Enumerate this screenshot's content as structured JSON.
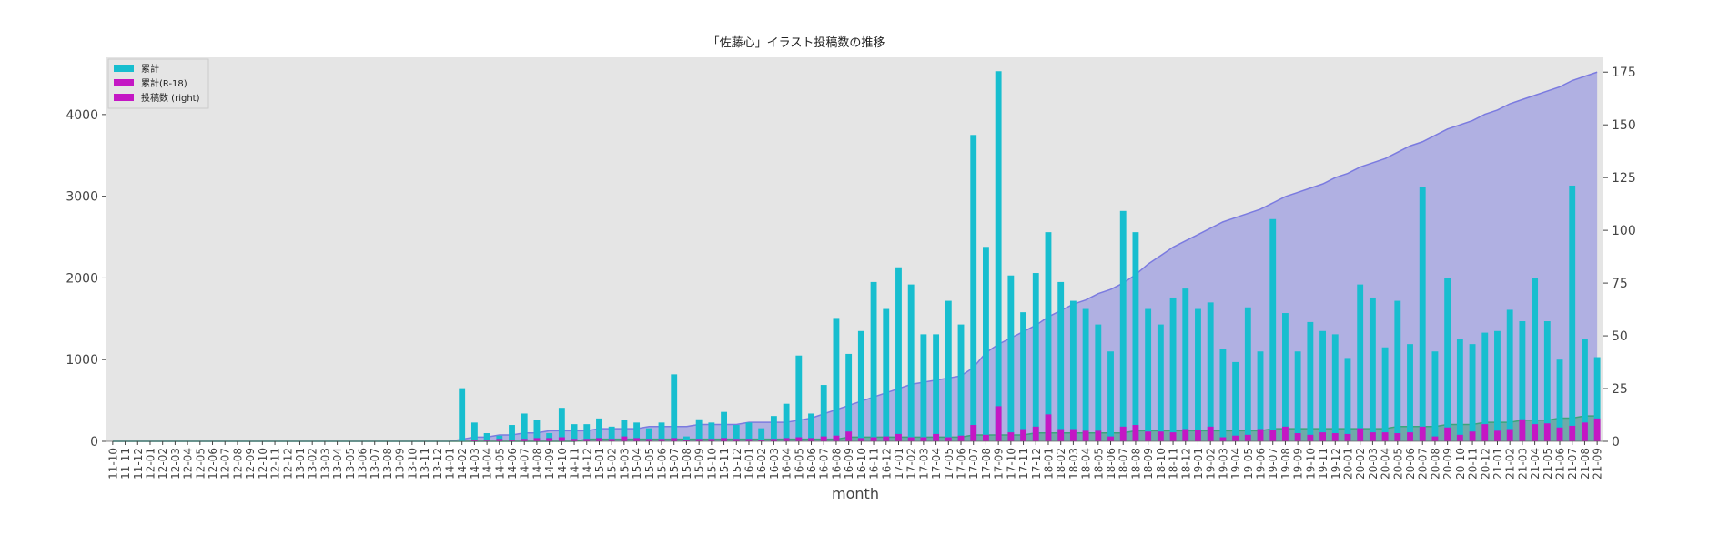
{
  "chart_data": {
    "type": "bar",
    "title": "「佐藤心」イラスト投稿数の推移",
    "xlabel": "month",
    "ylabel": "",
    "y2label": "",
    "ylim": [
      0,
      4700
    ],
    "y2lim": [
      0,
      182
    ],
    "yticks": [
      0,
      1000,
      2000,
      3000,
      4000
    ],
    "y2ticks": [
      0,
      25,
      50,
      75,
      100,
      125,
      150,
      175
    ],
    "grid": false,
    "legend_position": "top-left",
    "legend": [
      "累計",
      "累計(R-18)",
      "投稿数 (right)"
    ],
    "categories": [
      "11-10",
      "11-11",
      "11-12",
      "12-01",
      "12-02",
      "12-03",
      "12-04",
      "12-05",
      "12-06",
      "12-07",
      "12-08",
      "12-09",
      "12-10",
      "12-11",
      "12-12",
      "13-01",
      "13-02",
      "13-03",
      "13-04",
      "13-05",
      "13-06",
      "13-07",
      "13-08",
      "13-09",
      "13-10",
      "13-11",
      "13-12",
      "14-01",
      "14-02",
      "14-03",
      "14-04",
      "14-05",
      "14-06",
      "14-07",
      "14-08",
      "14-09",
      "14-10",
      "14-11",
      "14-12",
      "15-01",
      "15-02",
      "15-03",
      "15-04",
      "15-05",
      "15-06",
      "15-07",
      "15-08",
      "15-09",
      "15-10",
      "15-11",
      "15-12",
      "16-01",
      "16-02",
      "16-03",
      "16-04",
      "16-05",
      "16-06",
      "16-07",
      "16-08",
      "16-09",
      "16-10",
      "16-11",
      "16-12",
      "17-01",
      "17-02",
      "17-03",
      "17-04",
      "17-05",
      "17-06",
      "17-07",
      "17-08",
      "17-09",
      "17-10",
      "17-11",
      "17-12",
      "18-01",
      "18-02",
      "18-03",
      "18-04",
      "18-05",
      "18-06",
      "18-07",
      "18-08",
      "18-09",
      "18-10",
      "18-11",
      "18-12",
      "19-01",
      "19-02",
      "19-03",
      "19-04",
      "19-05",
      "19-06",
      "19-07",
      "19-08",
      "19-09",
      "19-10",
      "19-11",
      "19-12",
      "20-01",
      "20-02",
      "20-03",
      "20-04",
      "20-05",
      "20-06",
      "20-07",
      "20-08",
      "20-09",
      "20-10",
      "20-11",
      "20-12",
      "21-01",
      "21-02",
      "21-03",
      "21-04",
      "21-05",
      "21-06",
      "21-07",
      "21-08",
      "21-09"
    ],
    "series": [
      {
        "name": "累計",
        "axis": "left",
        "color": "#17becf",
        "values": [
          0,
          0,
          0,
          0,
          0,
          0,
          0,
          0,
          0,
          0,
          0,
          0,
          0,
          0,
          0,
          0,
          0,
          0,
          0,
          0,
          0,
          0,
          0,
          0,
          0,
          0,
          0,
          0,
          650,
          230,
          100,
          70,
          200,
          340,
          260,
          100,
          410,
          210,
          210,
          280,
          180,
          260,
          230,
          160,
          230,
          820,
          60,
          270,
          230,
          360,
          200,
          230,
          160,
          310,
          460,
          1050,
          340,
          690,
          1510,
          1070,
          1350,
          1950,
          1620,
          2130,
          1920,
          1310,
          1310,
          1720,
          1430,
          3750,
          2380,
          4530,
          2030,
          1580,
          2060,
          2560,
          1950,
          1720,
          1620,
          1430,
          1100,
          2820,
          2560,
          1620,
          1430,
          1760,
          1870,
          1620,
          1700,
          1130,
          970,
          1640,
          1100,
          2720,
          1570,
          1100,
          1460,
          1350,
          1310,
          1020,
          1920,
          1760,
          1150,
          1720,
          1190,
          3110,
          1100,
          2000,
          1250,
          1190,
          1330,
          1350,
          1610,
          1470,
          2000,
          1470,
          1000,
          3130,
          1250,
          1030
        ]
      },
      {
        "name": "累計(R-18)",
        "axis": "left",
        "color": "#c417c4",
        "values": [
          0,
          0,
          0,
          0,
          0,
          0,
          0,
          0,
          0,
          0,
          0,
          0,
          0,
          0,
          0,
          0,
          0,
          0,
          0,
          0,
          0,
          0,
          0,
          0,
          0,
          0,
          0,
          0,
          0,
          20,
          10,
          30,
          20,
          30,
          40,
          40,
          50,
          30,
          30,
          40,
          30,
          60,
          40,
          30,
          30,
          40,
          20,
          30,
          30,
          40,
          30,
          30,
          20,
          30,
          40,
          50,
          40,
          60,
          70,
          120,
          40,
          50,
          60,
          90,
          50,
          50,
          90,
          50,
          70,
          200,
          80,
          430,
          110,
          150,
          180,
          330,
          150,
          150,
          130,
          130,
          60,
          180,
          200,
          120,
          120,
          110,
          150,
          140,
          180,
          50,
          70,
          80,
          150,
          140,
          180,
          100,
          80,
          110,
          100,
          90,
          160,
          110,
          110,
          100,
          110,
          180,
          60,
          170,
          80,
          120,
          210,
          130,
          150,
          270,
          210,
          220,
          170,
          190,
          230,
          280
        ]
      },
      {
        "name": "投稿数 (right)",
        "axis": "right",
        "color": "#7b7be0",
        "values": [
          0,
          0,
          0,
          0,
          0,
          0,
          0,
          0,
          0,
          0,
          0,
          0,
          0,
          0,
          0,
          0,
          0,
          0,
          0,
          0,
          0,
          0,
          0,
          0,
          0,
          0,
          0,
          0,
          1,
          2,
          2,
          3,
          3,
          4,
          4,
          5,
          5,
          5,
          5,
          6,
          6,
          6,
          6,
          7,
          7,
          7,
          7,
          8,
          8,
          8,
          8,
          9,
          9,
          9,
          9,
          10,
          11,
          13,
          15,
          17,
          19,
          21,
          23,
          25,
          27,
          28,
          29,
          30,
          31,
          35,
          42,
          46,
          49,
          52,
          55,
          59,
          62,
          65,
          67,
          70,
          72,
          75,
          79,
          84,
          88,
          92,
          95,
          98,
          101,
          104,
          106,
          108,
          110,
          113,
          116,
          118,
          120,
          122,
          125,
          127,
          130,
          132,
          134,
          137,
          140,
          142,
          145,
          148,
          150,
          152,
          155,
          157,
          160,
          162,
          164,
          166,
          168,
          171,
          173,
          175
        ]
      },
      {
        "name": "",
        "axis": "right",
        "color": "#3aa67a",
        "values": [
          0,
          0,
          0,
          0,
          0,
          0,
          0,
          0,
          0,
          0,
          0,
          0,
          0,
          0,
          0,
          0,
          0,
          0,
          0,
          0,
          0,
          0,
          0,
          0,
          0,
          0,
          0,
          0,
          0,
          0,
          0,
          0,
          0,
          0,
          0,
          0,
          0,
          0,
          1,
          1,
          1,
          1,
          1,
          1,
          1,
          1,
          1,
          1,
          1,
          1,
          1,
          1,
          1,
          1,
          1,
          1,
          1,
          1,
          1,
          2,
          2,
          2,
          2,
          2,
          2,
          2,
          2,
          2,
          2,
          3,
          3,
          3,
          3,
          3,
          4,
          4,
          4,
          4,
          4,
          4,
          4,
          4,
          5,
          5,
          5,
          5,
          5,
          5,
          5,
          5,
          5,
          5,
          5,
          6,
          6,
          6,
          6,
          6,
          6,
          6,
          6,
          6,
          6,
          7,
          7,
          7,
          7,
          8,
          8,
          8,
          9,
          9,
          9,
          10,
          10,
          10,
          11,
          11,
          12,
          12
        ]
      }
    ]
  }
}
